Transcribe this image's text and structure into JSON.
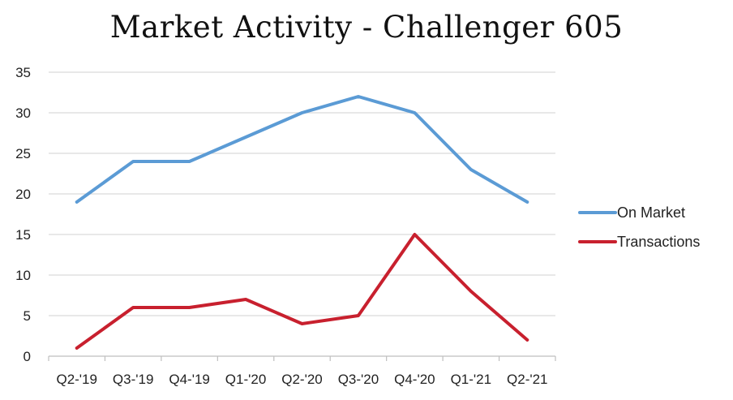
{
  "chart_data": {
    "type": "line",
    "title": "Market Activity - Challenger 605",
    "xlabel": "",
    "ylabel": "",
    "categories": [
      "Q2-'19",
      "Q3-'19",
      "Q4-'19",
      "Q1-'20",
      "Q2-'20",
      "Q3-'20",
      "Q4-'20",
      "Q1-'21",
      "Q2-'21"
    ],
    "ylim": [
      0,
      35
    ],
    "yticks": [
      0,
      5,
      10,
      15,
      20,
      25,
      30,
      35
    ],
    "grid": true,
    "legend_position": "right",
    "series": [
      {
        "name": "On Market",
        "color": "#5b9bd5",
        "values": [
          19,
          24,
          24,
          27,
          30,
          32,
          30,
          23,
          19
        ]
      },
      {
        "name": "Transactions",
        "color": "#c8202e",
        "values": [
          1,
          6,
          6,
          7,
          4,
          5,
          15,
          8,
          2
        ]
      }
    ]
  }
}
